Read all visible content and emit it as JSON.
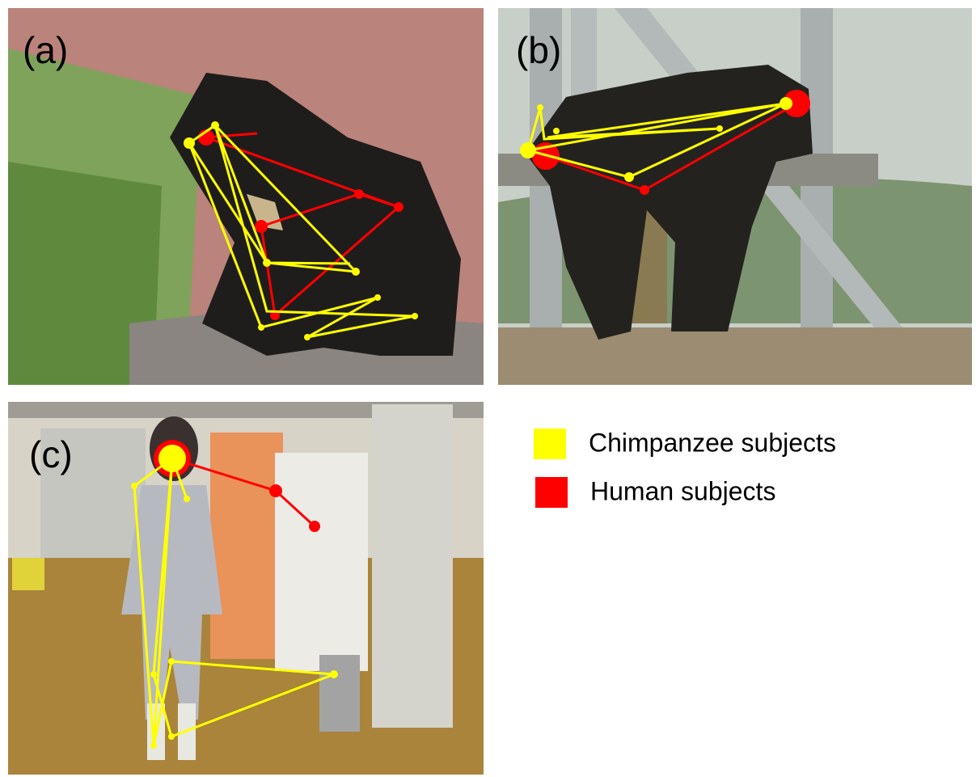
{
  "panels": [
    {
      "label": "(a)"
    },
    {
      "label": "(b)"
    },
    {
      "label": "(c)"
    }
  ],
  "legend": [
    {
      "label": "Chimpanzee subjects",
      "color": "#ffff00"
    },
    {
      "label": "Human subjects",
      "color": "#ff0000"
    }
  ]
}
